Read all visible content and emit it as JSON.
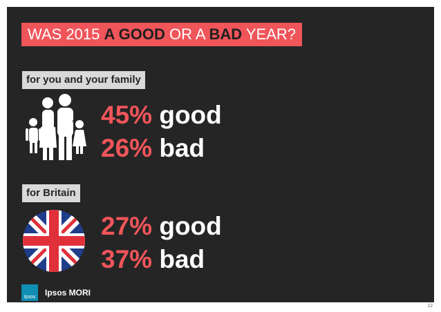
{
  "title": {
    "prefix": "WAS 2015 ",
    "good": "A GOOD",
    "middle": " OR A ",
    "bad": "BAD",
    "suffix": " YEAR?"
  },
  "sections": [
    {
      "label": "for you and your family",
      "icon": "family-icon",
      "stats": [
        {
          "pct": "45%",
          "word": "good"
        },
        {
          "pct": "26%",
          "word": "bad"
        }
      ]
    },
    {
      "label": "for Britain",
      "icon": "union-jack-icon",
      "stats": [
        {
          "pct": "27%",
          "word": "good"
        },
        {
          "pct": "37%",
          "word": "bad"
        }
      ]
    }
  ],
  "footer": {
    "logo_text": "Ipsos",
    "brand": "Ipsos MORI",
    "page_number": "12"
  },
  "colors": {
    "accent": "#f0555a",
    "background": "#252525",
    "label_bg": "#d9d9d9",
    "logo": "#0f8fb3"
  }
}
